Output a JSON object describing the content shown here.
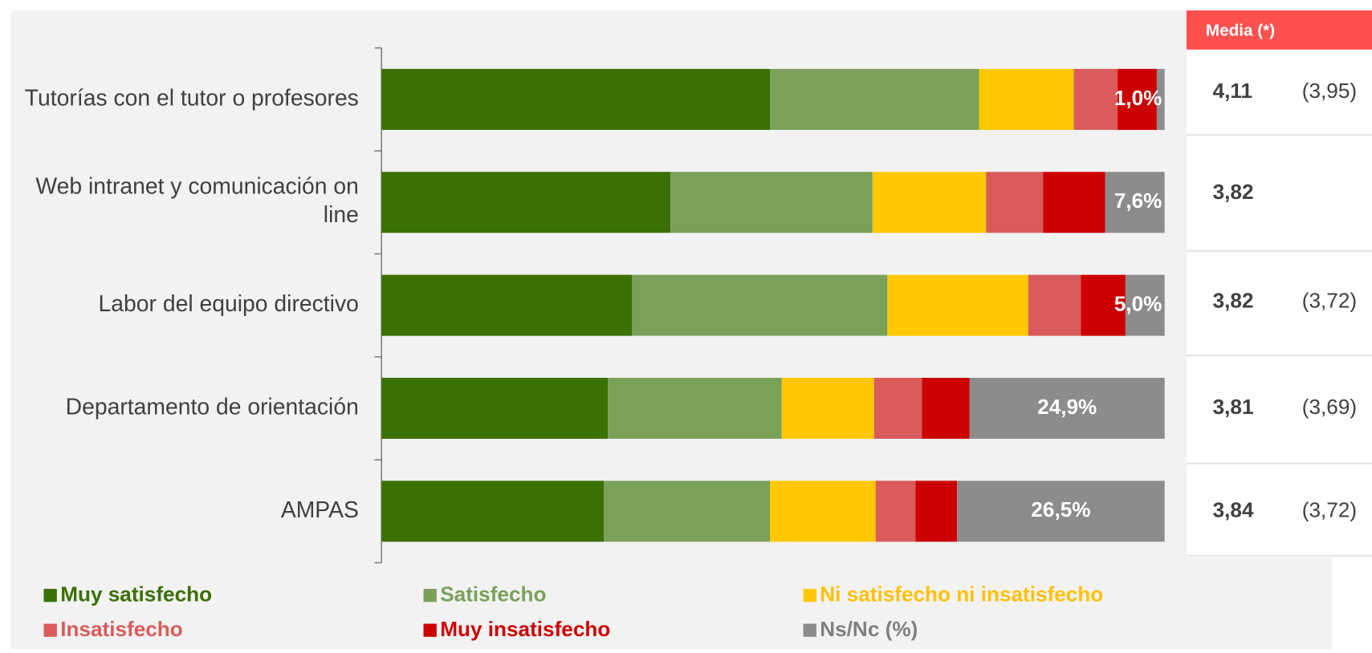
{
  "chart_data": {
    "type": "stacked_barh",
    "categories": [
      "Tutorías con el tutor o profesores",
      "Web intranet y comunicación on line",
      "Labor del equipo directivo",
      "Departamento de orientación",
      "AMPAS"
    ],
    "series": [
      {
        "name": "Muy satisfecho",
        "color": "#3a7004",
        "values": [
          49.6,
          36.9,
          32.0,
          28.9,
          28.4
        ]
      },
      {
        "name": "Satisfecho",
        "color": "#7aa05a",
        "values": [
          26.7,
          25.8,
          32.6,
          22.2,
          21.2
        ]
      },
      {
        "name": "Ni satisfecho ni insatisfecho",
        "color": "#ffc800",
        "values": [
          12.1,
          14.5,
          18.0,
          11.8,
          13.5
        ]
      },
      {
        "name": "Insatisfecho",
        "color": "#d95b5b",
        "values": [
          5.6,
          7.3,
          6.7,
          6.1,
          5.1
        ]
      },
      {
        "name": "Muy insatisfecho",
        "color": "#cc0000",
        "values": [
          5.0,
          7.9,
          5.7,
          6.1,
          5.3
        ]
      },
      {
        "name": "Ns/Nc (%)",
        "color": "#8c8c8c",
        "values": [
          1.0,
          7.6,
          5.0,
          24.9,
          26.5
        ],
        "value_labels": [
          "1,0%",
          "7,6%",
          "5,0%",
          "24,9%",
          "26,5%"
        ]
      }
    ],
    "xlim": [
      0,
      100
    ]
  },
  "table": {
    "header": "Media (*)",
    "rows": [
      [
        "4,11",
        "(3,95)"
      ],
      [
        "3,82",
        null
      ],
      [
        "3,82",
        "(3,72)"
      ],
      [
        "3,81",
        "(3,69)"
      ],
      [
        "3,84",
        "(3,72)"
      ]
    ]
  }
}
